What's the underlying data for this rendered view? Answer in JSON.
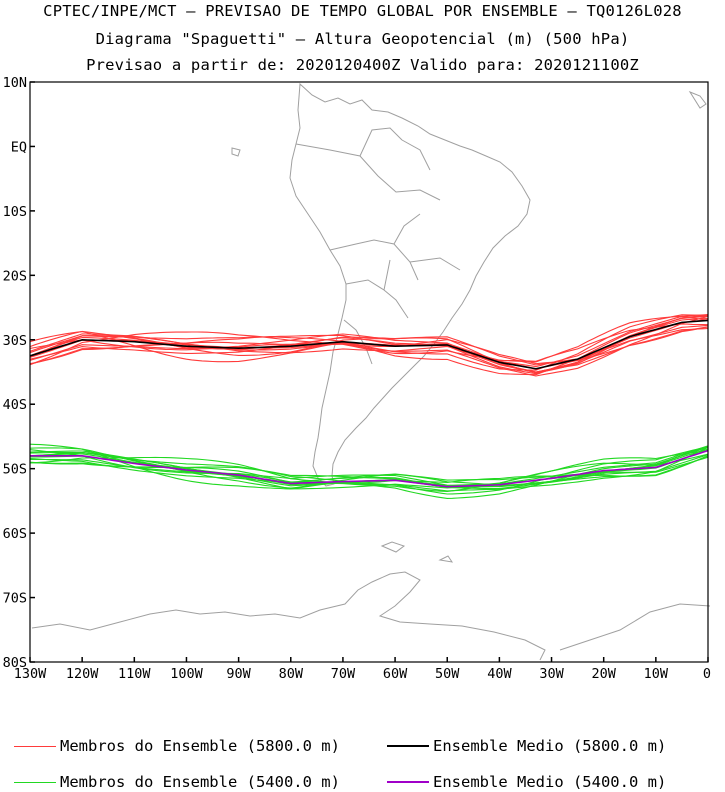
{
  "titles": {
    "line1": "CPTEC/INPE/MCT – PREVISAO DE TEMPO GLOBAL POR ENSEMBLE – TQ0126L028",
    "line2": "Diagrama \"Spaguetti\" – Altura Geopotencial (m) (500 hPa)",
    "line3": "Previsao a partir de: 2020120400Z  Valido para: 2020121100Z"
  },
  "axes": {
    "lat_ticks": [
      "10N",
      "EQ",
      "10S",
      "20S",
      "30S",
      "40S",
      "50S",
      "60S",
      "70S",
      "80S"
    ],
    "lon_ticks": [
      "130W",
      "120W",
      "110W",
      "100W",
      "90W",
      "80W",
      "70W",
      "60W",
      "50W",
      "40W",
      "30W",
      "20W",
      "10W",
      "0"
    ]
  },
  "colors": {
    "member_5800": "#ff3b3b",
    "mean_5800": "#000000",
    "member_5400": "#22d822",
    "mean_5400": "#a000c8",
    "coast": "#a0a0a0"
  },
  "chart_data": {
    "type": "line",
    "xlim": [
      -130,
      0
    ],
    "ylim": [
      -80,
      10
    ],
    "series": [
      {
        "name": "Ensemble Medio (5800.0 m)",
        "lon": [
          -130,
          -120,
          -110,
          -100,
          -90,
          -80,
          -70,
          -60,
          -50,
          -40,
          -33,
          -25,
          -15,
          -5,
          0
        ],
        "lat": [
          -32.5,
          -30.0,
          -30.3,
          -31.0,
          -31.3,
          -31.0,
          -30.3,
          -31.0,
          -30.8,
          -33.5,
          -34.5,
          -33.0,
          -29.5,
          -27.3,
          -27.0
        ]
      },
      {
        "name": "Ensemble Medio (5400.0 m)",
        "lon": [
          -130,
          -120,
          -110,
          -100,
          -90,
          -80,
          -70,
          -60,
          -50,
          -40,
          -30,
          -20,
          -10,
          0
        ],
        "lat": [
          -48.0,
          -48.0,
          -49.2,
          -50.2,
          -51.0,
          -52.3,
          -52.0,
          -51.8,
          -52.8,
          -52.5,
          -51.5,
          -50.3,
          -49.8,
          -47.2
        ]
      }
    ],
    "legend": [
      {
        "label": "Membros do Ensemble (5800.0 m)",
        "color": "#ff3b3b"
      },
      {
        "label": "Ensemble Medio (5800.0 m)",
        "color": "#000000"
      },
      {
        "label": "Membros do Ensemble (5400.0 m)",
        "color": "#22d822"
      },
      {
        "label": "Ensemble Medio (5400.0 m)",
        "color": "#a000c8"
      }
    ]
  }
}
